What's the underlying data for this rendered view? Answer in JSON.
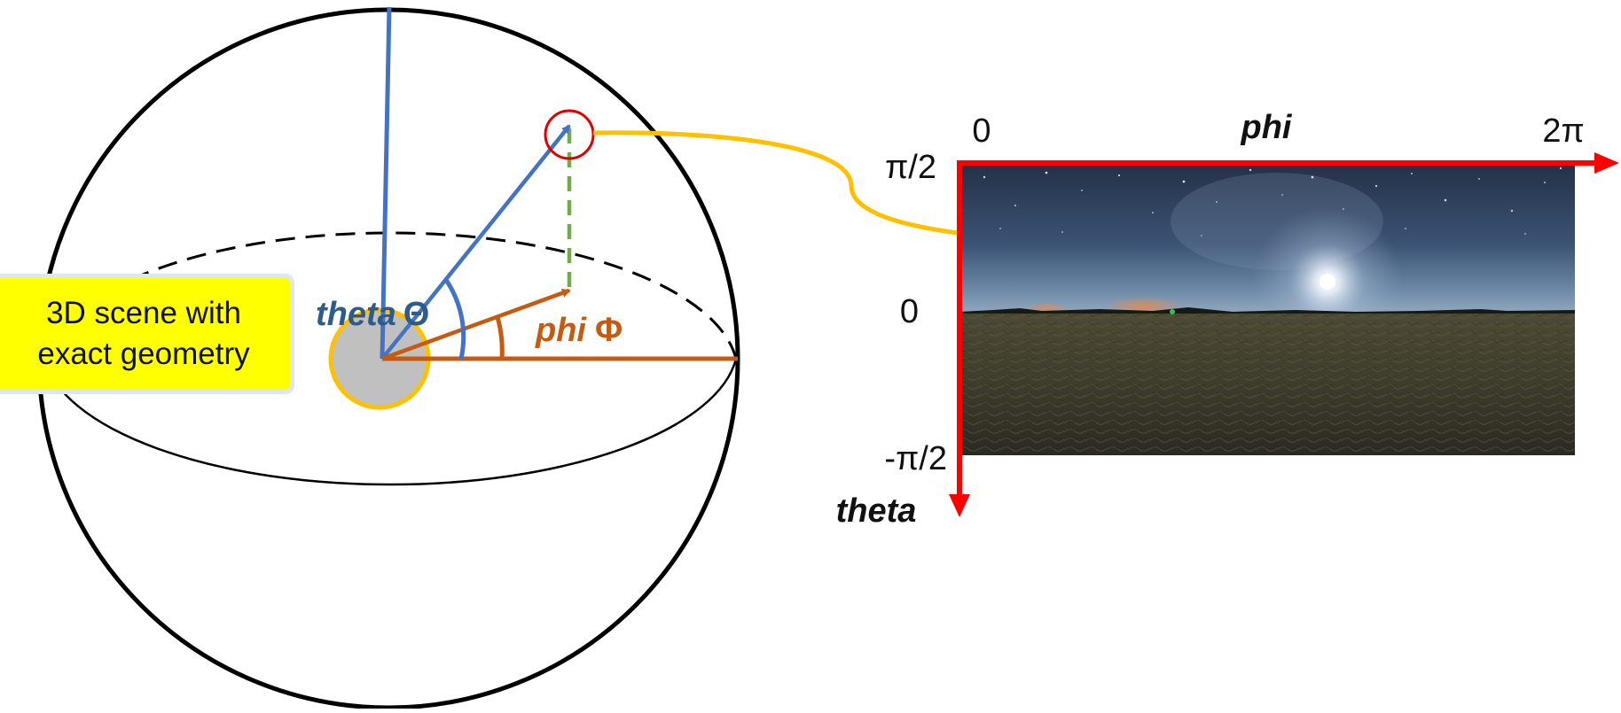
{
  "scene_label": {
    "line1": "3D scene with",
    "line2": "exact geometry"
  },
  "sphere": {
    "theta_label": "theta",
    "theta_symbol": "Θ",
    "phi_label": "phi",
    "phi_symbol": "Φ"
  },
  "panorama": {
    "x_axis_label": "phi",
    "y_axis_label": "theta",
    "x_tick_start": "0",
    "x_tick_end": "2π",
    "y_tick_top": "π/2",
    "y_tick_middle": "0",
    "y_tick_bottom": "-π/2"
  },
  "colors": {
    "blue": "#4472c4",
    "theta_text": "#2e5c8a",
    "orange": "#c55a11",
    "green": "#70ad47",
    "yellow": "#ffc000",
    "red": "#ff0000",
    "sphere": "#000000"
  }
}
